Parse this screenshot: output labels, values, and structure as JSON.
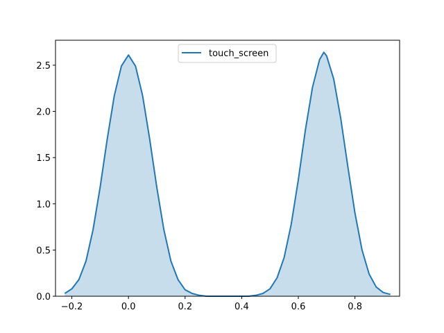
{
  "chart_data": {
    "type": "area",
    "title": "",
    "xlabel": "",
    "ylabel": "",
    "xlim": [
      -0.2577,
      0.9577
    ],
    "ylim": [
      0,
      2.77
    ],
    "xticks": [
      -0.2,
      0.0,
      0.2,
      0.4,
      0.6,
      0.8
    ],
    "xtick_labels": [
      "−0.2",
      "0.0",
      "0.2",
      "0.4",
      "0.6",
      "0.8"
    ],
    "yticks": [
      0.0,
      0.5,
      1.0,
      1.5,
      2.0,
      2.5
    ],
    "ytick_labels": [
      "0.0",
      "0.5",
      "1.0",
      "1.5",
      "2.0",
      "2.5"
    ],
    "grid": false,
    "legend_position": "top-center",
    "series": [
      {
        "name": "touch_screen",
        "color": "#1f77b4",
        "fill_color": "#1f77b4",
        "fill_opacity": 0.25,
        "x": [
          -0.225,
          -0.2,
          -0.175,
          -0.15,
          -0.125,
          -0.1,
          -0.075,
          -0.05,
          -0.025,
          0.0,
          0.025,
          0.05,
          0.075,
          0.1,
          0.125,
          0.15,
          0.175,
          0.2,
          0.225,
          0.25,
          0.275,
          0.3,
          0.325,
          0.35,
          0.375,
          0.4,
          0.425,
          0.45,
          0.475,
          0.5,
          0.525,
          0.55,
          0.575,
          0.6,
          0.625,
          0.65,
          0.675,
          0.69,
          0.7,
          0.725,
          0.75,
          0.775,
          0.8,
          0.825,
          0.85,
          0.875,
          0.9,
          0.925
        ],
        "y": [
          0.03,
          0.08,
          0.18,
          0.38,
          0.72,
          1.18,
          1.7,
          2.17,
          2.49,
          2.61,
          2.49,
          2.17,
          1.7,
          1.18,
          0.72,
          0.38,
          0.18,
          0.07,
          0.03,
          0.01,
          0.0,
          0.0,
          0.0,
          0.0,
          0.0,
          0.0,
          0.0,
          0.01,
          0.03,
          0.08,
          0.2,
          0.42,
          0.78,
          1.26,
          1.8,
          2.26,
          2.56,
          2.64,
          2.6,
          2.35,
          1.92,
          1.4,
          0.9,
          0.5,
          0.24,
          0.1,
          0.04,
          0.02
        ]
      }
    ]
  }
}
